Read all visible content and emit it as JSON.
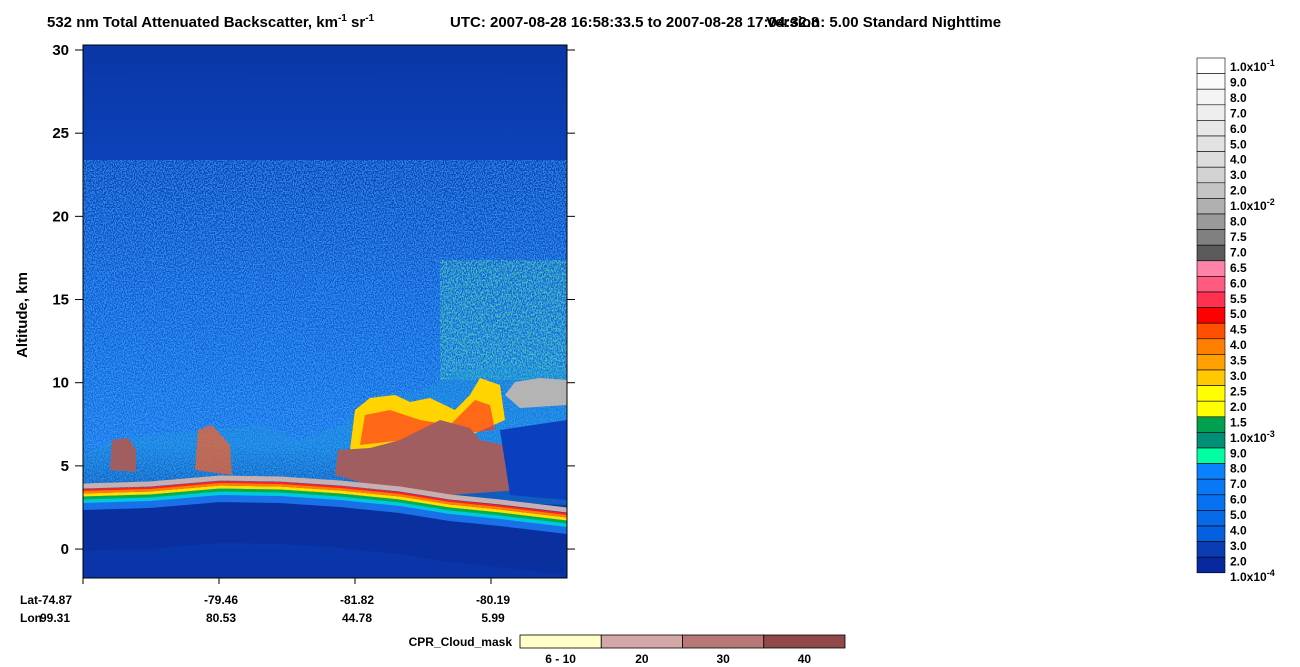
{
  "chart_data": {
    "type": "curtain",
    "title": [
      {
        "text": "532 nm Total Attenuated Backscatter, km"
      },
      {
        "sup": "-1"
      },
      {
        "text": " sr"
      },
      {
        "sup": "-1"
      }
    ],
    "utc": "UTC:  2007-08-28 16:58:33.5  to  2007-08-28 17:04:32.8",
    "version": "Version: 5.00  Standard  Nighttime",
    "y_label": "Altitude, km",
    "ylim": [
      -1.74,
      30.3
    ],
    "yticks": [
      0,
      5,
      10,
      15,
      20,
      25,
      30
    ],
    "lat_label": "Lat",
    "lon_label": "Lon",
    "lat": [
      "-74.87",
      "-79.46",
      "-81.82",
      "-80.19"
    ],
    "lon": [
      "99.31",
      "80.53",
      "44.78",
      "5.99"
    ],
    "colorbar": {
      "labels": [
        {
          "text": "1.0x10",
          "sup": "-1"
        },
        "9.0",
        "8.0",
        "7.0",
        "6.0",
        "5.0",
        "4.0",
        "3.0",
        "2.0",
        {
          "text": "1.0x10",
          "sup": "-2"
        },
        "8.0",
        "7.5",
        "7.0",
        "6.5",
        "6.0",
        "5.5",
        "5.0",
        "4.5",
        "4.0",
        "3.5",
        "3.0",
        "2.5",
        "2.0",
        "1.5",
        {
          "text": "1.0x10",
          "sup": "-3"
        },
        "9.0",
        "8.0",
        "7.0",
        "6.0",
        "5.0",
        "4.0",
        "3.0",
        "2.0",
        {
          "text": "1.0x10",
          "sup": "-4"
        }
      ],
      "colors": [
        "#ffffff",
        "#fafafa",
        "#f4f4f4",
        "#eeeeee",
        "#e8e8e8",
        "#e2e2e2",
        "#dcdcdc",
        "#d2d2d2",
        "#c4c4c4",
        "#b0b0b0",
        "#9a9a9a",
        "#808080",
        "#5a5a5a",
        "#ff82a8",
        "#ff5a80",
        "#ff3050",
        "#ff0000",
        "#ff5000",
        "#ff8000",
        "#ffa000",
        "#ffc800",
        "#ffff00",
        "#ffff00",
        "#00a050",
        "#009078",
        "#00ffa0",
        "#0a82ff",
        "#0878f5",
        "#0770f0",
        "#066ae8",
        "#0560e0",
        "#0a3cb4",
        "#0828a0"
      ]
    },
    "cpr_legend": {
      "title": "CPR_Cloud_mask",
      "categories": [
        "6 - 10",
        "20",
        "30",
        "40"
      ],
      "colors": [
        "#ffffc8",
        "#d4a8a8",
        "#b87878",
        "#904848"
      ]
    }
  }
}
